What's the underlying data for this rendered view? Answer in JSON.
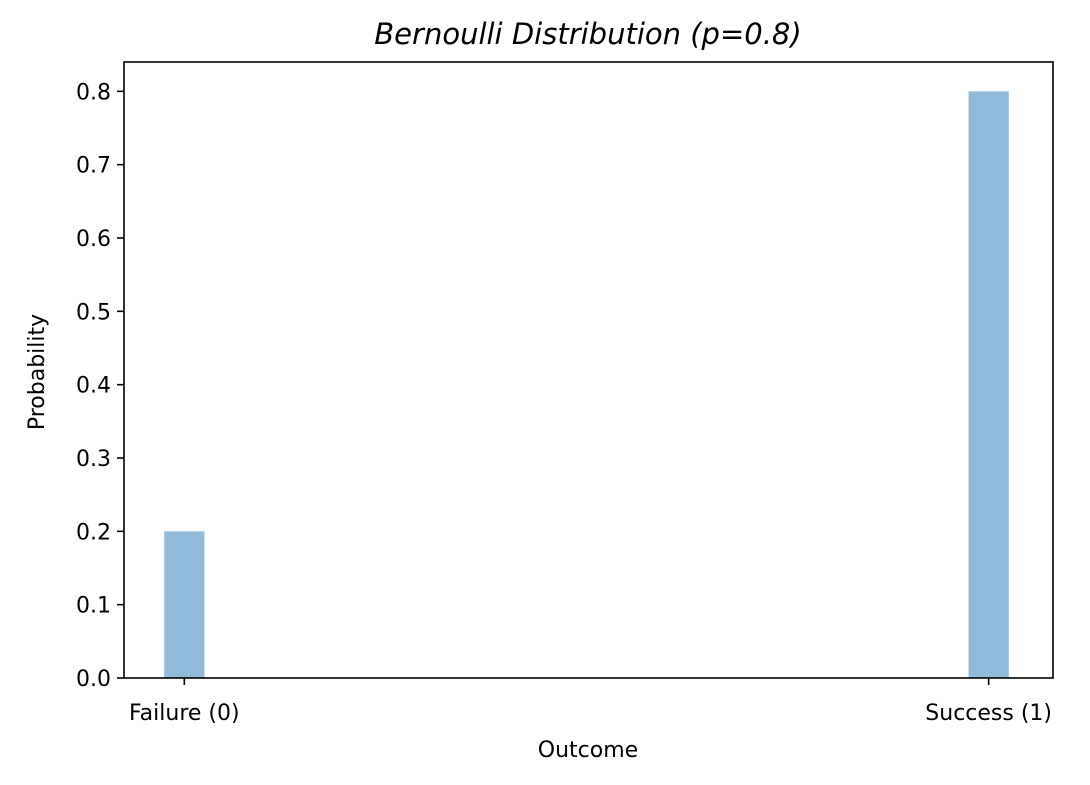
{
  "chart_data": {
    "type": "bar",
    "title": "Bernoulli Distribution (p=0.8)",
    "xlabel": "Outcome",
    "ylabel": "Probability",
    "categories": [
      "Failure (0)",
      "Success (1)"
    ],
    "x": [
      0,
      1
    ],
    "values": [
      0.2,
      0.8
    ],
    "xlim": [
      -0.075,
      1.08
    ],
    "ylim": [
      0,
      0.84
    ],
    "yticks": [
      0.0,
      0.1,
      0.2,
      0.3,
      0.4,
      0.5,
      0.6,
      0.7,
      0.8
    ],
    "ytick_labels": [
      "0.0",
      "0.1",
      "0.2",
      "0.3",
      "0.4",
      "0.5",
      "0.6",
      "0.7",
      "0.8"
    ],
    "bar_width": 0.05,
    "bar_color": "#8fbad9",
    "grid": false,
    "legend": "none"
  }
}
